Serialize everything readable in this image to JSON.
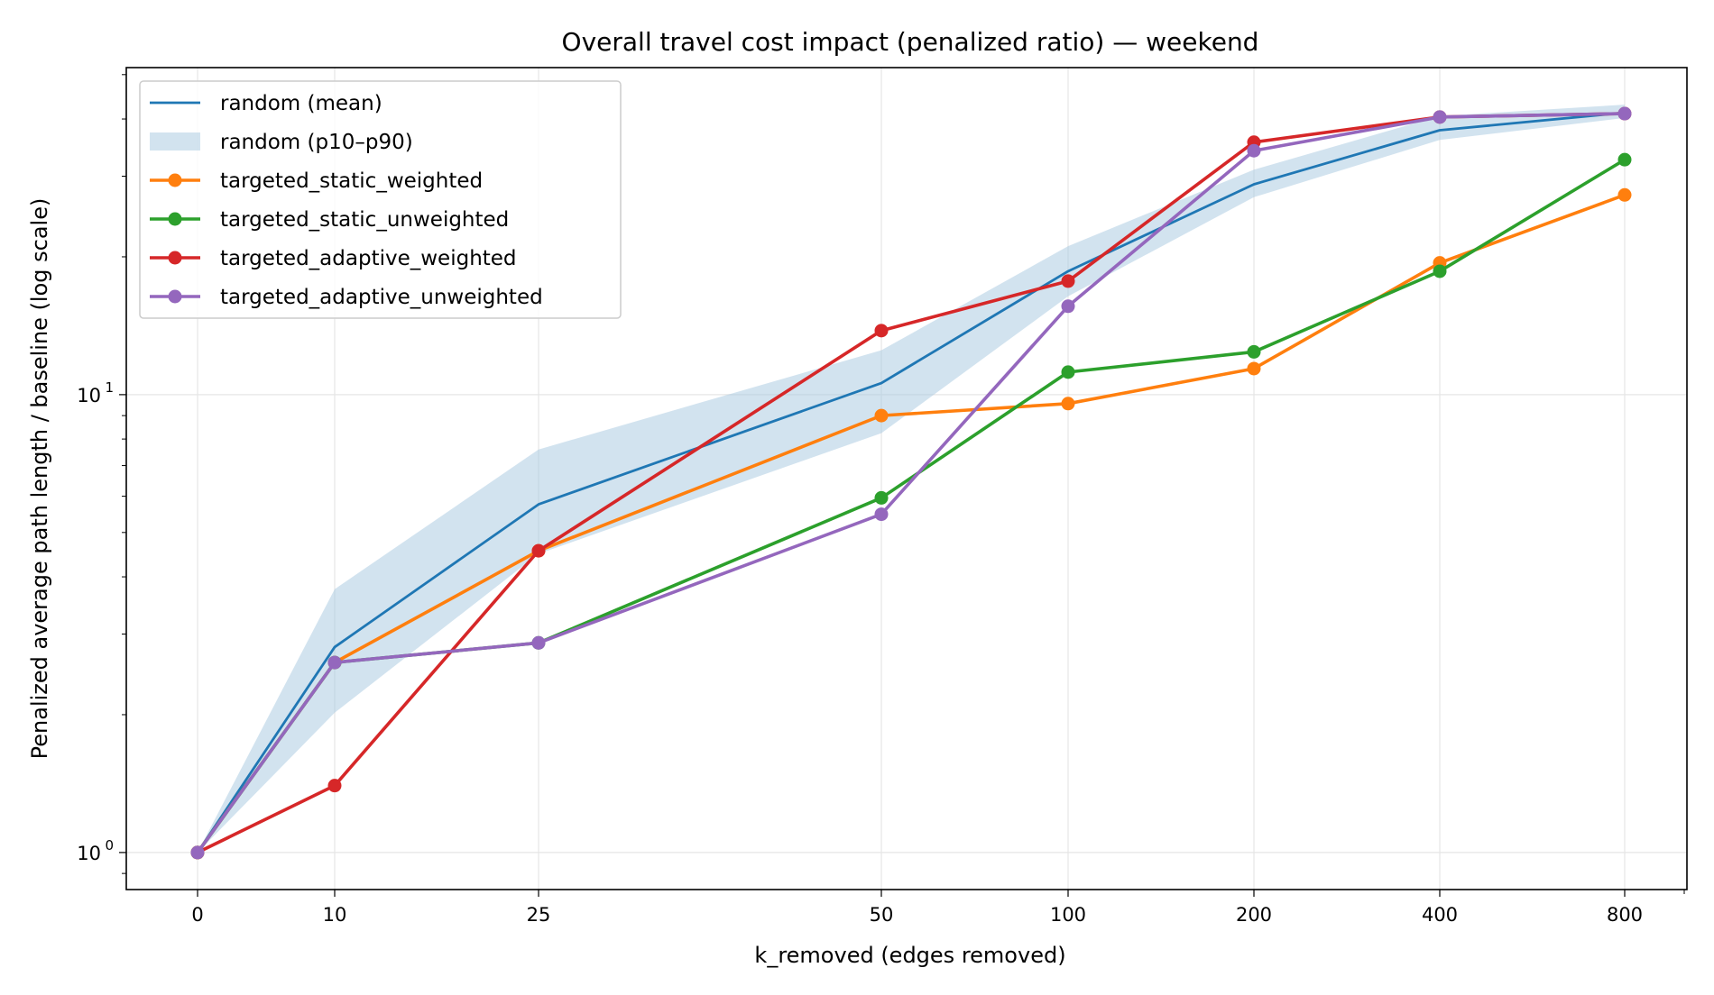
{
  "chart_data": {
    "type": "line",
    "title": "Overall travel cost impact (penalized ratio) — weekend",
    "xlabel": "k_removed (edges removed)",
    "ylabel": "Penalized average path length / baseline (log scale)",
    "x": [
      0,
      10,
      25,
      50,
      100,
      200,
      400,
      800
    ],
    "x_tick_labels": [
      "0",
      "10",
      "25",
      "50",
      "100",
      "200",
      "400",
      "800"
    ],
    "y_scale": "log",
    "ylim": [
      0.83,
      51.8
    ],
    "y_tick_labels": [
      {
        "base": "10",
        "exp": "0",
        "value": 1
      },
      {
        "base": "10",
        "exp": "1",
        "value": 10
      }
    ],
    "grid": true,
    "legend_position": "top-left",
    "band": {
      "name": "random (p10–p90)",
      "color": "#a6c8e0",
      "lower": [
        1,
        2.02,
        4.49,
        8.24,
        16.4,
        27.0,
        36.0,
        40.2
      ],
      "upper": [
        1,
        3.76,
        7.59,
        12.5,
        21.1,
        31.0,
        40.6,
        43.0
      ]
    },
    "series": [
      {
        "name": "random (mean)",
        "color": "#1f77b4",
        "markers": false,
        "values": [
          1,
          2.81,
          5.76,
          10.6,
          18.6,
          28.8,
          37.8,
          41.3
        ]
      },
      {
        "name": "targeted_static_weighted",
        "color": "#ff7f0e",
        "markers": true,
        "values": [
          1,
          2.6,
          4.56,
          9.0,
          9.56,
          11.4,
          19.4,
          27.3
        ]
      },
      {
        "name": "targeted_static_unweighted",
        "color": "#2ca02c",
        "markers": true,
        "values": [
          1,
          2.6,
          2.87,
          5.95,
          11.2,
          12.4,
          18.6,
          32.6
        ]
      },
      {
        "name": "targeted_adaptive_weighted",
        "color": "#d62728",
        "markers": true,
        "values": [
          1,
          1.4,
          4.56,
          13.8,
          17.7,
          35.6,
          40.4,
          41.1
        ]
      },
      {
        "name": "targeted_adaptive_unweighted",
        "color": "#9467bd",
        "markers": true,
        "values": [
          1,
          2.6,
          2.87,
          5.48,
          15.6,
          34.1,
          40.4,
          41.1
        ]
      }
    ]
  }
}
